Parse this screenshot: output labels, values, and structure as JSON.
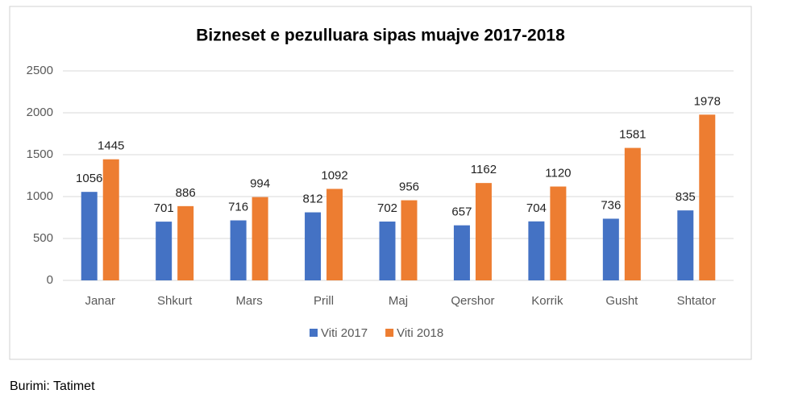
{
  "chart_data": {
    "type": "bar",
    "title": "Bizneset e pezulluara sipas muajve 2017-2018",
    "categories": [
      "Janar",
      "Shkurt",
      "Mars",
      "Prill",
      "Maj",
      "Qershor",
      "Korrik",
      "Gusht",
      "Shtator"
    ],
    "series": [
      {
        "name": "Viti 2017",
        "color": "#4472c4",
        "values": [
          1056,
          701,
          716,
          812,
          702,
          657,
          704,
          736,
          835
        ]
      },
      {
        "name": "Viti 2018",
        "color": "#ed7d31",
        "values": [
          1445,
          886,
          994,
          1092,
          956,
          1162,
          1120,
          1581,
          1978
        ]
      }
    ],
    "ylim": [
      0,
      2500
    ],
    "yticks": [
      0,
      500,
      1000,
      1500,
      2000,
      2500
    ],
    "grid": true,
    "legend": "bottom",
    "source": "Burimi: Tatimet"
  }
}
